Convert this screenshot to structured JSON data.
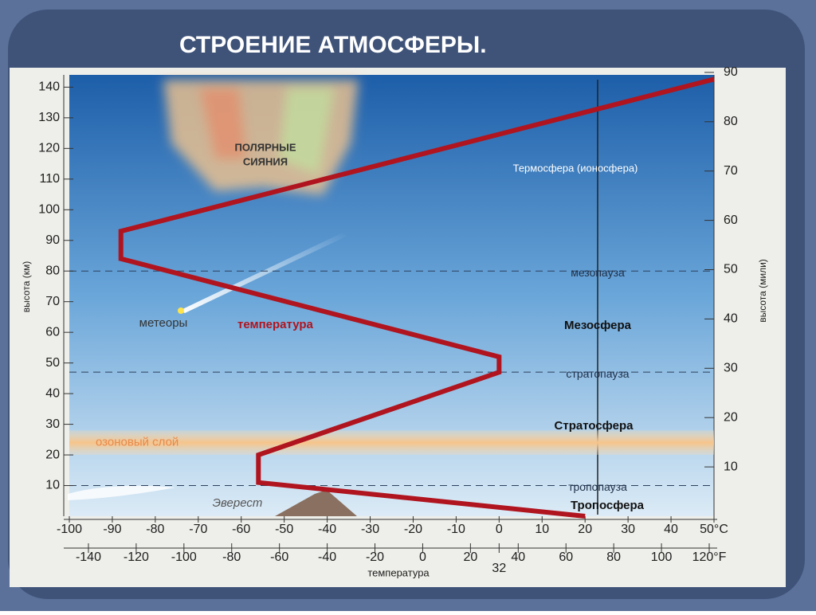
{
  "title": "СТРОЕНИЕ АТМОСФЕРЫ.",
  "chart_data": {
    "type": "line",
    "x": [
      20,
      -56,
      -56,
      0,
      0,
      -88,
      -88,
      50
    ],
    "series": [
      {
        "name": "температура",
        "color": "#b0141e",
        "values": [
          0,
          11,
          20,
          47,
          52,
          84,
          93,
          142.6
        ]
      }
    ],
    "xlabel": "температура",
    "ylabel": "высота (км)",
    "y2label": "высота (мили)",
    "xlim": [
      -100,
      50
    ],
    "xticks": [
      -100,
      -90,
      -80,
      -70,
      -60,
      -50,
      -40,
      -30,
      -20,
      -10,
      0,
      10,
      20,
      30,
      40,
      {
        "value": 50,
        "label": "50°C"
      }
    ],
    "x2lim": [
      -148,
      122
    ],
    "x2ticks": [
      -140,
      -120,
      -100,
      -80,
      -60,
      -40,
      -20,
      0,
      20,
      32,
      40,
      60,
      80,
      100,
      {
        "value": 120,
        "label": "120°F"
      }
    ],
    "ylim": [
      0,
      144
    ],
    "yticks": [
      10,
      20,
      30,
      40,
      50,
      60,
      70,
      80,
      90,
      100,
      110,
      120,
      130,
      140
    ],
    "y2lim": [
      0,
      89.5
    ],
    "y2ticks": [
      10,
      20,
      30,
      40,
      50,
      60,
      70,
      80,
      90
    ],
    "layers": [
      {
        "label": "мезопауза",
        "altitude": 80
      },
      {
        "label": "стратопауза",
        "altitude": 47
      },
      {
        "label": "тропопауза",
        "altitude": 10
      }
    ],
    "ozone": {
      "label": "озоновый слой",
      "range": [
        20,
        28
      ]
    },
    "annotations": [
      "ПОЛЯРНЫЕ",
      "СИЯНИЯ",
      "метеоры",
      "Эверест",
      "Термосфера (ионосфера)",
      "Мезосфера",
      "Стратосфера",
      "Тропосфера"
    ]
  }
}
